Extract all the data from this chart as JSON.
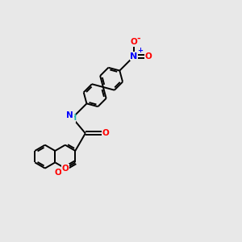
{
  "background_color": "#e8e8e8",
  "bond_color": "#000000",
  "atom_colors": {
    "O": "#ff0000",
    "N": "#0000ff",
    "H": "#20b2aa",
    "C": "#000000"
  },
  "figsize": [
    3.0,
    3.0
  ],
  "dpi": 100,
  "lw": 1.4,
  "fs": 7.5,
  "sep": 0.07
}
